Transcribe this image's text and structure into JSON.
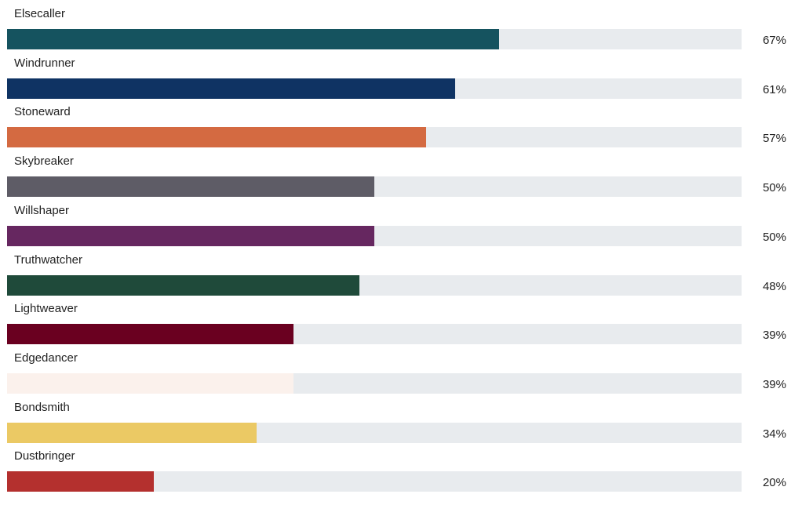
{
  "chart_data": {
    "type": "bar",
    "orientation": "horizontal",
    "xlim": [
      0,
      100
    ],
    "value_unit": "%",
    "track_color": "#e8ebee",
    "categories": [
      "Elsecaller",
      "Windrunner",
      "Stoneward",
      "Skybreaker",
      "Willshaper",
      "Truthwatcher",
      "Lightweaver",
      "Edgedancer",
      "Bondsmith",
      "Dustbringer"
    ],
    "values": [
      67,
      61,
      57,
      50,
      50,
      48,
      39,
      39,
      34,
      20
    ],
    "value_labels": [
      "67%",
      "61%",
      "57%",
      "50%",
      "50%",
      "48%",
      "39%",
      "39%",
      "34%",
      "20%"
    ],
    "colors": [
      "#15535f",
      "#0f3363",
      "#d46a41",
      "#5e5c66",
      "#662760",
      "#1f4a3a",
      "#6a0020",
      "#fbf1ec",
      "#ebc964",
      "#b4302e"
    ]
  }
}
